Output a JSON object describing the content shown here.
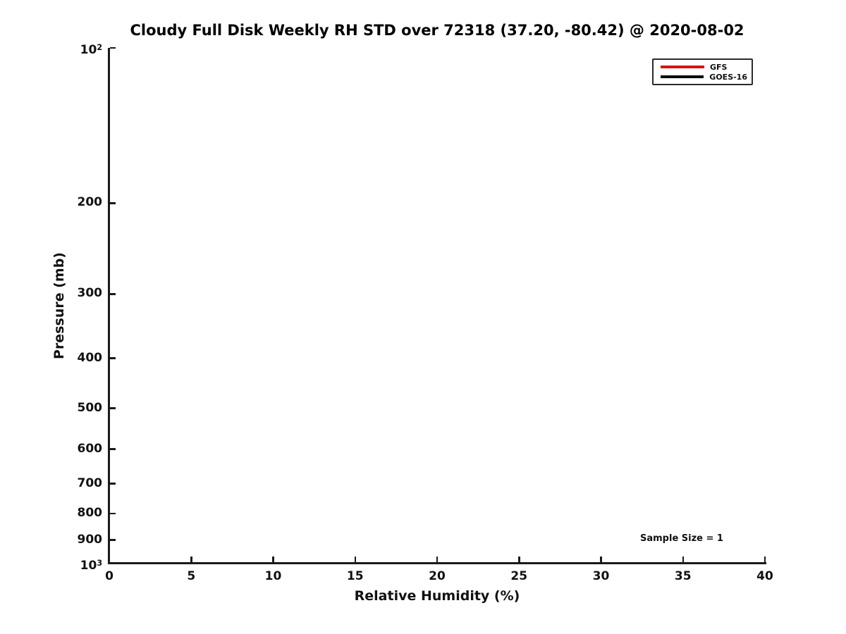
{
  "figure": {
    "background": "#ffffff",
    "axis_color": "#1a1a1a"
  },
  "chart_data": {
    "type": "line",
    "title": "Cloudy Full Disk Weekly RH STD over 72318 (37.20, -80.42) @ 2020-08-02",
    "xlabel": "Relative Humidity (%)",
    "ylabel": "Pressure (mb)",
    "xlim": [
      0,
      40
    ],
    "x_ticks": [
      0,
      5,
      10,
      15,
      20,
      25,
      30,
      35,
      40
    ],
    "x_tick_labels": [
      "0",
      "5",
      "10",
      "15",
      "20",
      "25",
      "30",
      "35",
      "40"
    ],
    "ylim": [
      100,
      1000
    ],
    "y_scale": "log",
    "y_inverted": true,
    "y_ticks": [
      100,
      200,
      300,
      400,
      500,
      600,
      700,
      800,
      900,
      1000
    ],
    "y_tick_labels": [
      "10^2",
      "200",
      "300",
      "400",
      "500",
      "600",
      "700",
      "800",
      "900",
      "10^3"
    ],
    "grid": false,
    "legend_position": "upper right",
    "legend": [
      {
        "label": "GFS",
        "color": "#dd1111"
      },
      {
        "label": "GOES-16",
        "color": "#000000"
      }
    ],
    "series": [
      {
        "name": "GFS",
        "color": "#dd1111",
        "points": []
      },
      {
        "name": "GOES-16",
        "color": "#000000",
        "points": []
      }
    ],
    "annotation": {
      "text": "Sample Size = 1"
    }
  }
}
